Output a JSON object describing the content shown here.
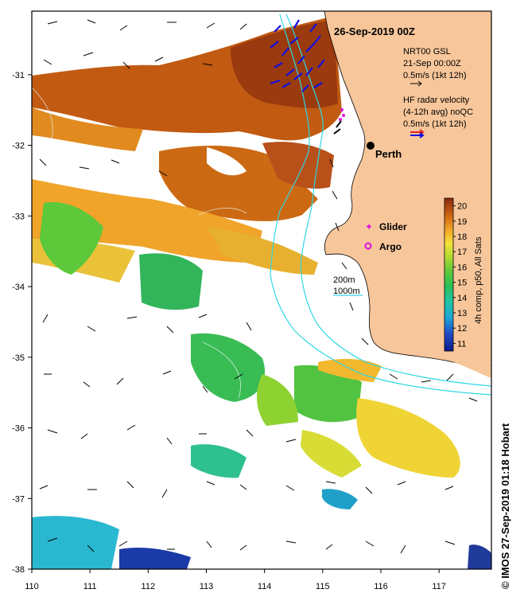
{
  "map": {
    "title": "26-Sep-2019 00Z",
    "legend_gsl": {
      "line1": "NRT00 GSL",
      "line2": "21-Sep 00:00Z",
      "line3": "0.5m/s (1kt 12h)"
    },
    "legend_radar": {
      "line1": "HF radar velocity",
      "line2": "(4-12h avg) noQC",
      "line3": "0.5m/s (1kt 12h)"
    },
    "places": {
      "city": "Perth"
    },
    "markers": {
      "glider": "Glider",
      "argo": "Argo"
    },
    "isobaths": {
      "label_200": "200m",
      "label_1000": "1000m"
    },
    "colorbar": {
      "label": "4h comp, p50, All Sats",
      "ticks": [
        "20",
        "19",
        "18",
        "17",
        "16",
        "15",
        "14",
        "13",
        "12",
        "11"
      ],
      "min": 10.5,
      "max": 20.5
    },
    "axes": {
      "lon_ticks": [
        "110",
        "111",
        "112",
        "113",
        "114",
        "115",
        "116",
        "117"
      ],
      "lat_ticks": [
        "-31",
        "-32",
        "-33",
        "-34",
        "-35",
        "-36",
        "-37",
        "-38"
      ],
      "lon_range": [
        110,
        117.9
      ],
      "lat_range": [
        -30.1,
        -38
      ]
    },
    "credit": "© IMOS 27-Sep-2019 01:18 Hobart",
    "colors": {
      "land": "#f7c69a",
      "isobath": "#2ed7e4",
      "frame": "#000000",
      "radar_arrow": "#1010e0"
    }
  }
}
